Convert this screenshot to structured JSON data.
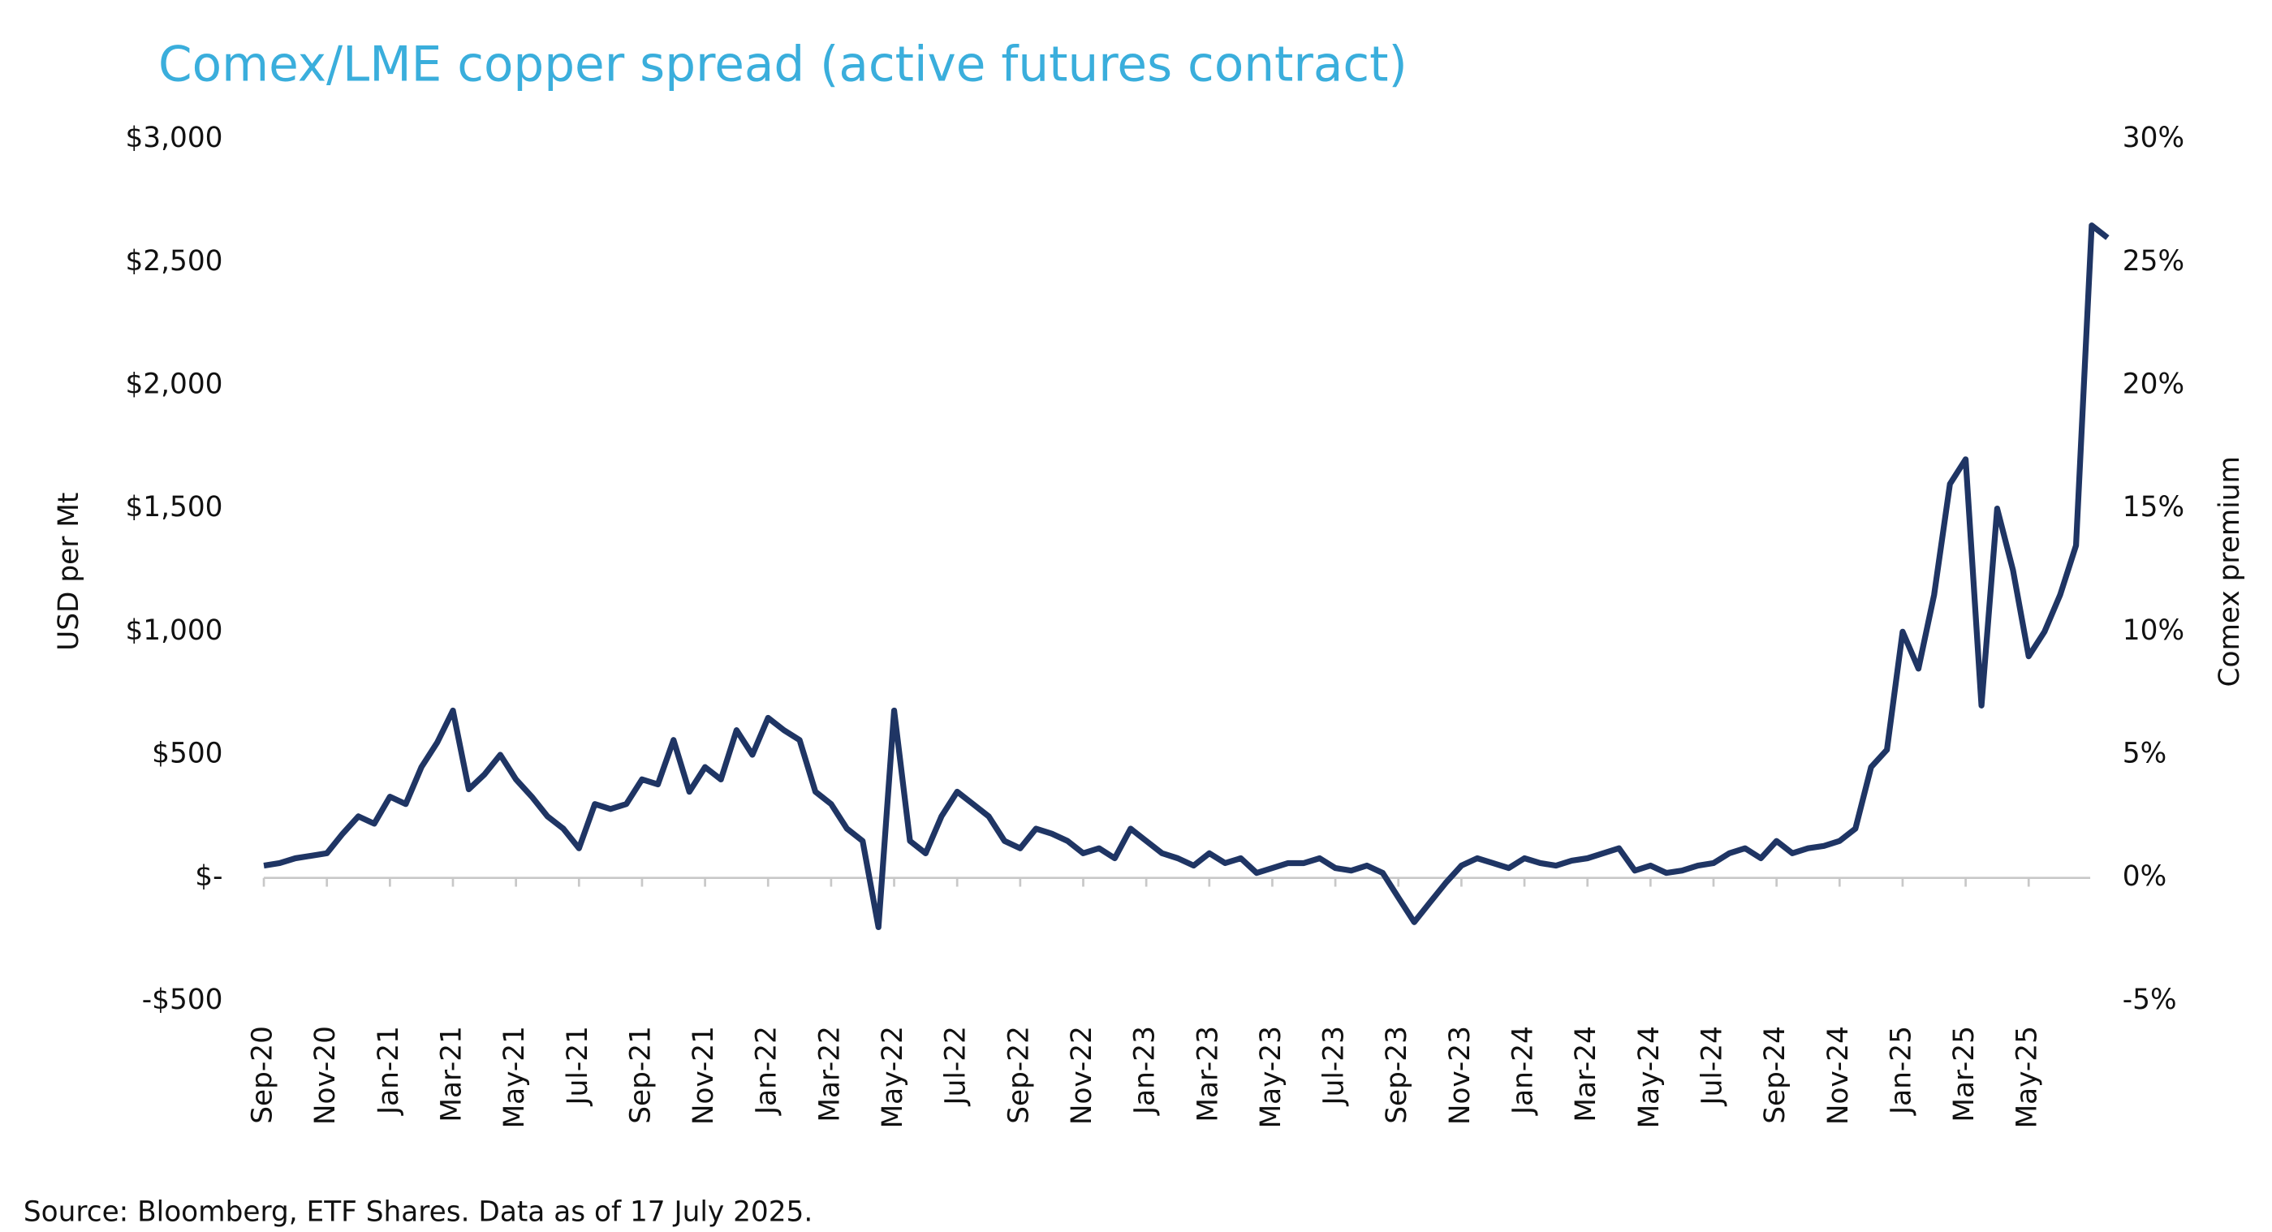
{
  "chart_data": {
    "type": "line",
    "title": "Comex/LME copper spread (active futures contract)",
    "y_label": "USD per Mt",
    "y2_label": "Comex premium",
    "source": "Source: Bloomberg, ETF Shares. Data as of 17 July 2025.",
    "categories": [
      "Sep-20",
      null,
      null,
      null,
      "Nov-20",
      null,
      null,
      null,
      "Jan-21",
      null,
      null,
      null,
      "Mar-21",
      null,
      null,
      null,
      "May-21",
      null,
      null,
      null,
      "Jul-21",
      null,
      null,
      null,
      "Sep-21",
      null,
      null,
      null,
      "Nov-21",
      null,
      null,
      null,
      "Jan-22",
      null,
      null,
      null,
      "Mar-22",
      null,
      null,
      null,
      "May-22",
      null,
      null,
      null,
      "Jul-22",
      null,
      null,
      null,
      "Sep-22",
      null,
      null,
      null,
      "Nov-22",
      null,
      null,
      null,
      "Jan-23",
      null,
      null,
      null,
      "Mar-23",
      null,
      null,
      null,
      "May-23",
      null,
      null,
      null,
      "Jul-23",
      null,
      null,
      null,
      "Sep-23",
      null,
      null,
      null,
      "Nov-23",
      null,
      null,
      null,
      "Jan-24",
      null,
      null,
      null,
      "Mar-24",
      null,
      null,
      null,
      "May-24",
      null,
      null,
      null,
      "Jul-24",
      null,
      null,
      null,
      "Sep-24",
      null,
      null,
      null,
      "Nov-24",
      null,
      null,
      null,
      "Jan-25",
      null,
      null,
      null,
      "Mar-25",
      null,
      null,
      null,
      "May-25",
      null,
      null,
      null,
      null,
      null
    ],
    "series": [
      {
        "name": "Comex/LME spread",
        "color": "#1f3564",
        "values": [
          50,
          60,
          80,
          90,
          100,
          180,
          250,
          220,
          330,
          300,
          450,
          550,
          680,
          360,
          420,
          500,
          400,
          330,
          250,
          200,
          120,
          300,
          280,
          300,
          400,
          380,
          560,
          350,
          450,
          400,
          600,
          500,
          650,
          600,
          560,
          350,
          300,
          200,
          150,
          -200,
          680,
          150,
          100,
          250,
          350,
          300,
          250,
          150,
          120,
          200,
          180,
          150,
          100,
          120,
          80,
          200,
          150,
          100,
          80,
          50,
          100,
          60,
          80,
          20,
          40,
          60,
          60,
          80,
          40,
          30,
          50,
          20,
          -80,
          -180,
          -100,
          -20,
          50,
          80,
          60,
          40,
          80,
          60,
          50,
          70,
          80,
          100,
          120,
          30,
          50,
          20,
          30,
          50,
          60,
          100,
          120,
          80,
          150,
          100,
          120,
          130,
          150,
          200,
          450,
          520,
          1000,
          850,
          1150,
          1600,
          1700,
          700,
          1500,
          1250,
          900,
          1000,
          1150,
          1350,
          2650,
          2600
        ]
      }
    ],
    "ylim": [
      -500,
      3000
    ],
    "yticks": [
      {
        "value": -500,
        "label": "-$500"
      },
      {
        "value": 0,
        "label": "$-"
      },
      {
        "value": 500,
        "label": "$500"
      },
      {
        "value": 1000,
        "label": "$1,000"
      },
      {
        "value": 1500,
        "label": "$1,500"
      },
      {
        "value": 2000,
        "label": "$2,000"
      },
      {
        "value": 2500,
        "label": "$2,500"
      },
      {
        "value": 3000,
        "label": "$3,000"
      }
    ],
    "y2lim": [
      -5,
      30
    ],
    "y2ticks": [
      {
        "value": -5,
        "label": "-5%"
      },
      {
        "value": 0,
        "label": "0%"
      },
      {
        "value": 5,
        "label": "5%"
      },
      {
        "value": 10,
        "label": "10%"
      },
      {
        "value": 15,
        "label": "15%"
      },
      {
        "value": 20,
        "label": "20%"
      },
      {
        "value": 25,
        "label": "25%"
      },
      {
        "value": 30,
        "label": "30%"
      }
    ],
    "grid": false
  }
}
